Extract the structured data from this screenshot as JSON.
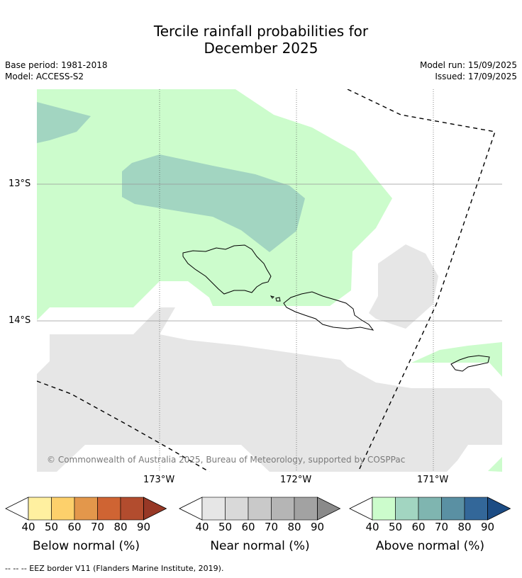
{
  "title_line1": "Tercile rainfall probabilities for",
  "title_line2": "December 2025",
  "base_period": "Base period: 1981-2018",
  "model": "Model: ACCESS-S2",
  "model_run": "Model run: 15/09/2025",
  "issued": "Issued: 17/09/2025",
  "copyright": "© Commonwealth of Australia 2025, Bureau of Meteorology, supported by COSPPac",
  "footer": "-- -- -- EEZ border V11 (Flanders Marine Institute, 2019).",
  "lat_labels": [
    "13°S",
    "14°S"
  ],
  "lon_labels": [
    "173°W",
    "172°W",
    "171°W"
  ],
  "colorbars": [
    {
      "label": "Below normal (%)",
      "ticks": [
        "40",
        "50",
        "60",
        "70",
        "80",
        "90"
      ],
      "colors": [
        "#fff0a0",
        "#fdd06b",
        "#e3974b",
        "#cf6433",
        "#b24c2e",
        "#973826"
      ]
    },
    {
      "label": "Near normal (%)",
      "ticks": [
        "40",
        "50",
        "60",
        "70",
        "80",
        "90"
      ],
      "colors": [
        "#e6e6e6",
        "#d9d9d9",
        "#c9c9c9",
        "#b5b5b5",
        "#a2a2a2",
        "#8a8a8a"
      ]
    },
    {
      "label": "Above normal (%)",
      "ticks": [
        "40",
        "50",
        "60",
        "70",
        "80",
        "90"
      ],
      "colors": [
        "#ccfccc",
        "#a2d5c1",
        "#7fb5b0",
        "#5a90a3",
        "#336799",
        "#1c4c84"
      ]
    }
  ],
  "colors": {
    "above_40_50": "#ccfccc",
    "above_50_60": "#a2d5c1",
    "near_40_50": "#e6e6e6"
  }
}
